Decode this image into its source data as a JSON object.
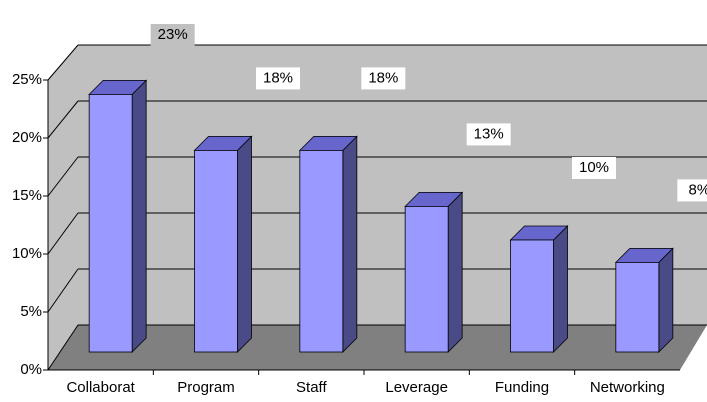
{
  "chart_data": {
    "type": "bar",
    "categories": [
      "Collaborat",
      "Program",
      "Staff",
      "Leverage",
      "Funding",
      "Networking"
    ],
    "values": [
      23,
      18,
      18,
      13,
      10,
      8
    ],
    "value_labels": [
      "23%",
      "18%",
      "18%",
      "13%",
      "10%",
      "8%"
    ],
    "color": "#9999ff",
    "ylim": [
      0,
      25
    ],
    "yticks": [
      {
        "value": 0,
        "label": "0%"
      },
      {
        "value": 5,
        "label": "5%"
      },
      {
        "value": 10,
        "label": "10%"
      },
      {
        "value": 15,
        "label": "15%"
      },
      {
        "value": 20,
        "label": "20%"
      },
      {
        "value": 25,
        "label": "25%"
      }
    ],
    "grid": true
  }
}
